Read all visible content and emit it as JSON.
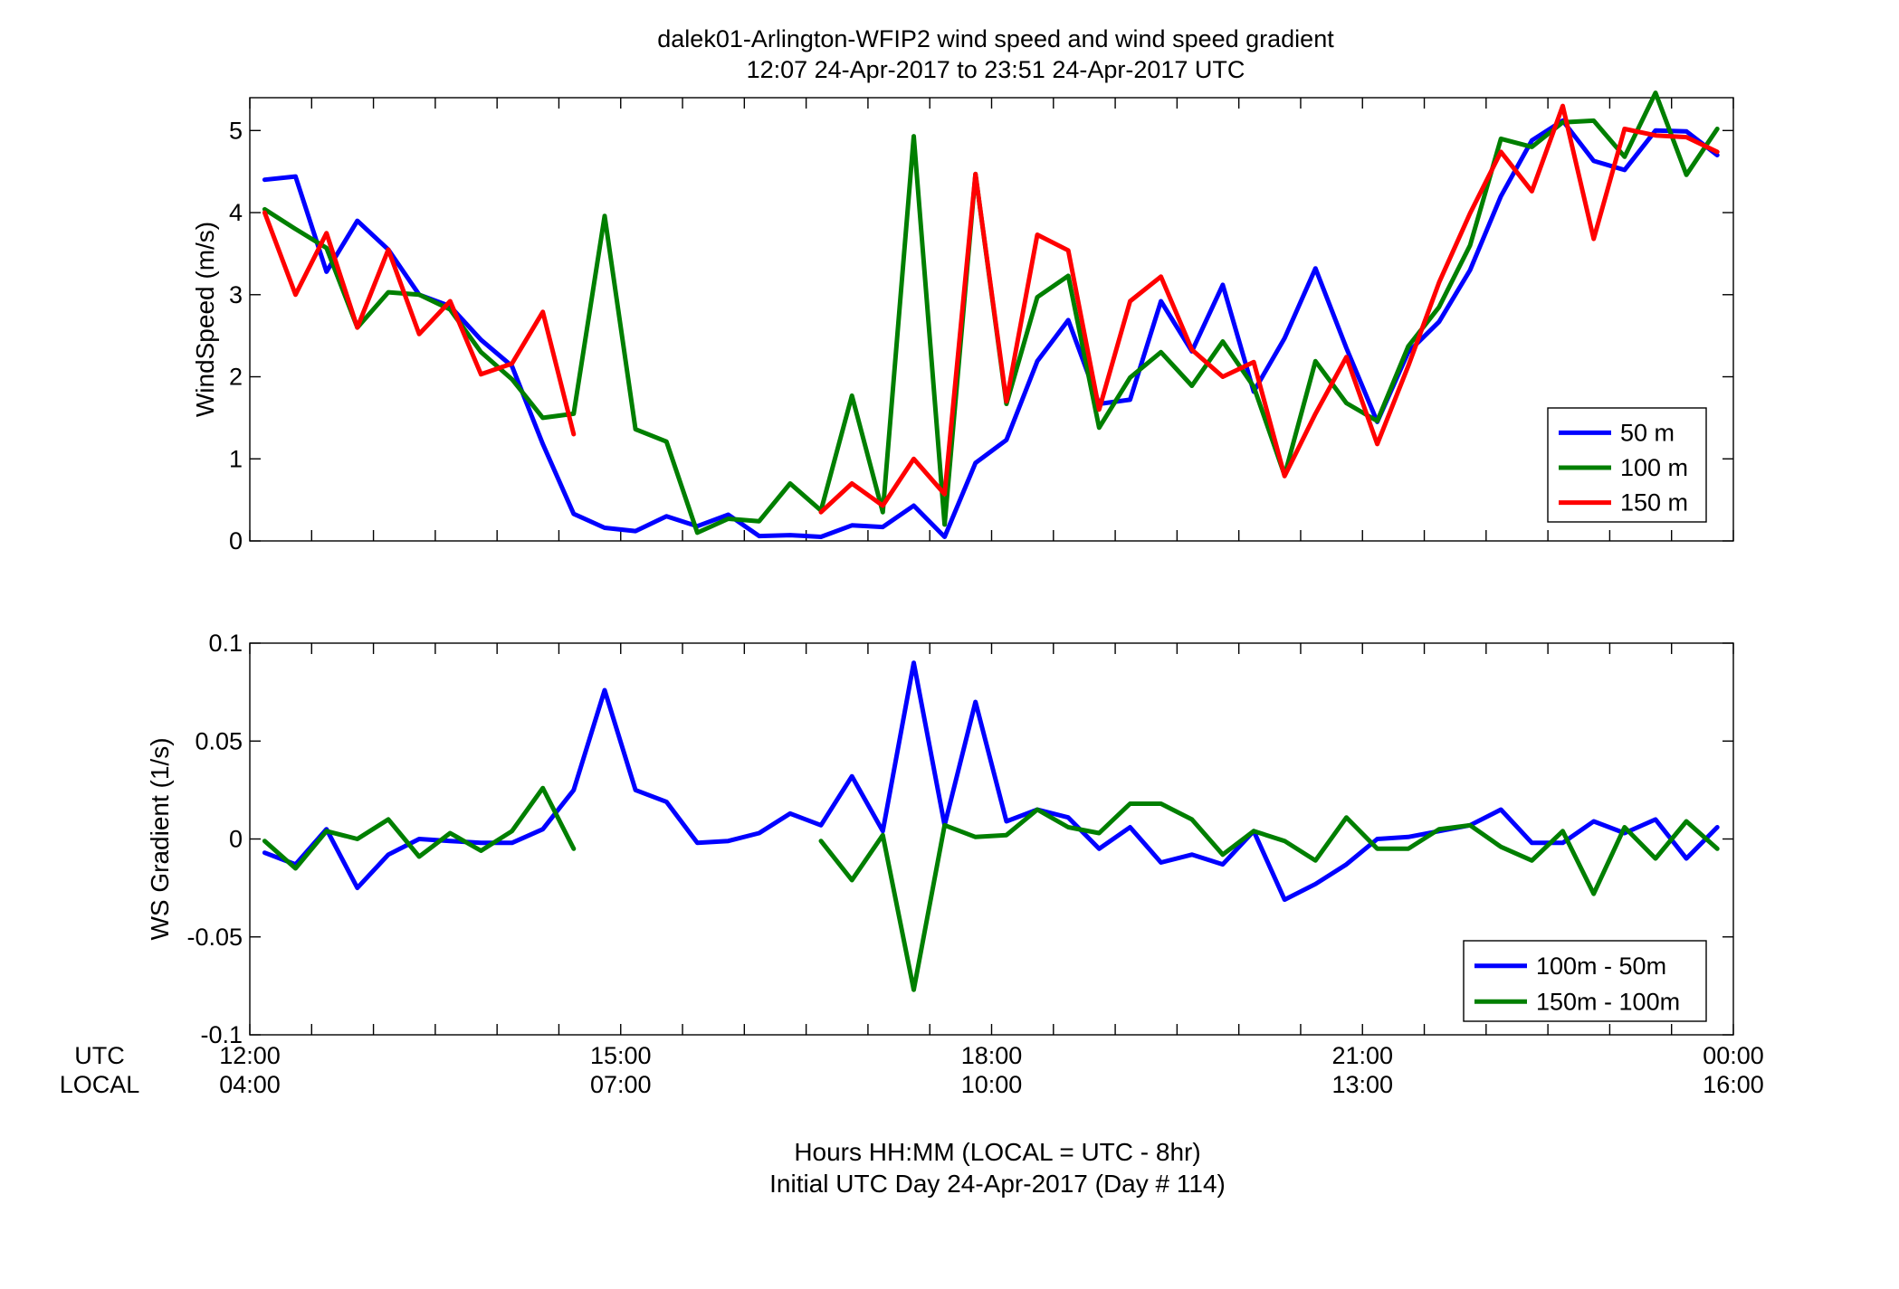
{
  "title_line1": "dalek01-Arlington-WFIP2  wind speed and wind speed gradient",
  "title_line2": "12:07 24-Apr-2017 to 23:51 24-Apr-2017  UTC",
  "xaxis": {
    "row1_label": "UTC",
    "row2_label": "LOCAL",
    "ticks": [
      {
        "x": 12,
        "utc": "12:00",
        "local": "04:00"
      },
      {
        "x": 15,
        "utc": "15:00",
        "local": "07:00"
      },
      {
        "x": 18,
        "utc": "18:00",
        "local": "10:00"
      },
      {
        "x": 21,
        "utc": "21:00",
        "local": "13:00"
      },
      {
        "x": 24,
        "utc": "00:00",
        "local": "16:00"
      }
    ],
    "label_line1": "Hours HH:MM  (LOCAL = UTC - 8hr)",
    "label_line2": "Initial UTC Day 24-Apr-2017 (Day # 114)"
  },
  "colors": {
    "blue": "#0000ff",
    "green": "#007f00",
    "red": "#ff0000"
  },
  "chart_data": [
    {
      "type": "line",
      "ylabel": "WindSpeed (m/s)",
      "xlim": [
        12,
        24
      ],
      "ylim": [
        0,
        5.4
      ],
      "yticks": [
        0,
        1,
        2,
        3,
        4,
        5
      ],
      "ytick_labels": [
        "0",
        "1",
        "2",
        "3",
        "4",
        "5"
      ],
      "xtick_minor": [
        12.5,
        13,
        13.5,
        14,
        14.5,
        15.5,
        16,
        16.5,
        17,
        17.5,
        18.5,
        19,
        19.5,
        20,
        20.5,
        21.5,
        22,
        22.5,
        23,
        23.5
      ],
      "legend_position": "bottom-right",
      "x": [
        12.12,
        12.37,
        12.62,
        12.87,
        13.12,
        13.37,
        13.62,
        13.87,
        14.12,
        14.37,
        14.62,
        14.87,
        15.12,
        15.37,
        15.62,
        15.87,
        16.12,
        16.37,
        16.62,
        16.87,
        17.12,
        17.37,
        17.62,
        17.87,
        18.12,
        18.37,
        18.62,
        18.87,
        19.12,
        19.37,
        19.62,
        19.87,
        20.12,
        20.37,
        20.62,
        20.87,
        21.12,
        21.37,
        21.62,
        21.87,
        22.12,
        22.37,
        22.62,
        22.87,
        23.12,
        23.37,
        23.62,
        23.87
      ],
      "series": [
        {
          "name": "50 m",
          "color": "#0000ff",
          "values": [
            4.4,
            4.44,
            3.28,
            3.9,
            3.55,
            3.0,
            2.86,
            2.45,
            2.13,
            1.18,
            0.33,
            0.16,
            0.12,
            0.3,
            0.18,
            0.32,
            0.06,
            0.07,
            0.05,
            0.19,
            0.17,
            0.43,
            0.05,
            0.95,
            1.23,
            2.19,
            2.69,
            1.67,
            1.72,
            2.92,
            2.31,
            3.12,
            1.82,
            2.47,
            3.32,
            2.35,
            1.45,
            2.3,
            2.67,
            3.3,
            4.2,
            4.88,
            5.12,
            4.63,
            4.52,
            5.0,
            4.99,
            4.7
          ]
        },
        {
          "name": "100 m",
          "color": "#007f00",
          "values": [
            4.04,
            3.8,
            3.57,
            2.6,
            3.03,
            3.0,
            2.82,
            2.3,
            1.97,
            1.5,
            1.55,
            3.96,
            1.36,
            1.21,
            0.1,
            0.27,
            0.24,
            0.7,
            0.37,
            1.77,
            0.35,
            4.93,
            0.2,
            4.47,
            1.67,
            2.97,
            3.23,
            1.38,
            1.99,
            2.3,
            1.89,
            2.43,
            1.88,
            0.8,
            2.19,
            1.68,
            1.46,
            2.37,
            2.85,
            3.6,
            4.9,
            4.8,
            5.1,
            5.12,
            4.68,
            5.46,
            4.46,
            5.02
          ]
        },
        {
          "name": "150 m",
          "color": "#ff0000",
          "values": [
            4.0,
            3.0,
            3.75,
            2.6,
            3.55,
            2.52,
            2.92,
            2.03,
            2.16,
            2.79,
            1.3,
            null,
            null,
            null,
            null,
            null,
            null,
            null,
            0.35,
            0.7,
            0.43,
            1.0,
            0.57,
            4.47,
            1.7,
            3.73,
            3.54,
            1.6,
            2.92,
            3.22,
            2.33,
            2.0,
            2.18,
            0.79,
            1.55,
            2.24,
            1.18,
            2.13,
            3.15,
            3.99,
            4.74,
            4.26,
            5.3,
            3.68,
            5.02,
            4.94,
            4.92,
            4.74
          ]
        }
      ]
    },
    {
      "type": "line",
      "ylabel": "WS Gradient (1/s)",
      "xlim": [
        12,
        24
      ],
      "ylim": [
        -0.1,
        0.1
      ],
      "yticks": [
        -0.1,
        -0.05,
        0,
        0.05,
        0.1
      ],
      "ytick_labels": [
        "-0.1",
        "-0.05",
        "0",
        "0.05",
        "0.1"
      ],
      "xtick_minor": [
        12.5,
        13,
        13.5,
        14,
        14.5,
        15.5,
        16,
        16.5,
        17,
        17.5,
        18.5,
        19,
        19.5,
        20,
        20.5,
        21.5,
        22,
        22.5,
        23,
        23.5
      ],
      "legend_position": "bottom-right",
      "x": [
        12.12,
        12.37,
        12.62,
        12.87,
        13.12,
        13.37,
        13.62,
        13.87,
        14.12,
        14.37,
        14.62,
        14.87,
        15.12,
        15.37,
        15.62,
        15.87,
        16.12,
        16.37,
        16.62,
        16.87,
        17.12,
        17.37,
        17.62,
        17.87,
        18.12,
        18.37,
        18.62,
        18.87,
        19.12,
        19.37,
        19.62,
        19.87,
        20.12,
        20.37,
        20.62,
        20.87,
        21.12,
        21.37,
        21.62,
        21.87,
        22.12,
        22.37,
        22.62,
        22.87,
        23.12,
        23.37,
        23.62,
        23.87
      ],
      "series": [
        {
          "name": "100m - 50m",
          "color": "#0000ff",
          "values": [
            -0.007,
            -0.013,
            0.005,
            -0.025,
            -0.008,
            0.0,
            -0.001,
            -0.002,
            -0.002,
            0.005,
            0.025,
            0.076,
            0.025,
            0.019,
            -0.002,
            -0.001,
            0.003,
            0.013,
            0.007,
            0.032,
            0.004,
            0.09,
            0.007,
            0.07,
            0.009,
            0.015,
            0.011,
            -0.005,
            0.006,
            -0.012,
            -0.008,
            -0.013,
            0.004,
            -0.031,
            -0.023,
            -0.013,
            0.0,
            0.001,
            0.004,
            0.007,
            0.015,
            -0.002,
            -0.002,
            0.009,
            0.003,
            0.01,
            -0.01,
            0.006
          ]
        },
        {
          "name": "150m - 100m",
          "color": "#007f00",
          "values": [
            -0.001,
            -0.015,
            0.004,
            0.0,
            0.01,
            -0.009,
            0.003,
            -0.006,
            0.004,
            0.026,
            -0.005,
            null,
            null,
            null,
            null,
            null,
            null,
            null,
            -0.001,
            -0.021,
            0.002,
            -0.077,
            0.007,
            0.001,
            0.002,
            0.015,
            0.006,
            0.003,
            0.018,
            0.018,
            0.01,
            -0.008,
            0.004,
            -0.001,
            -0.011,
            0.011,
            -0.005,
            -0.005,
            0.005,
            0.007,
            -0.004,
            -0.011,
            0.004,
            -0.028,
            0.006,
            -0.01,
            0.009,
            -0.005
          ]
        }
      ]
    }
  ]
}
